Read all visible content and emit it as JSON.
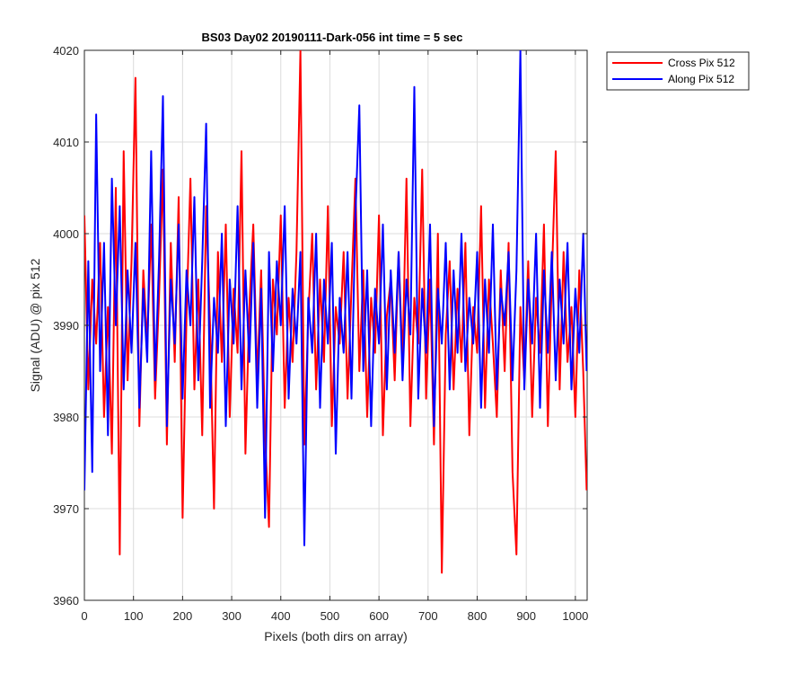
{
  "chart_data": {
    "type": "line",
    "title": "BS03 Day02 20190111-Dark-056 int time = 5 sec",
    "xlabel": "Pixels (both dirs on array)",
    "ylabel": "Signal (ADU) @ pix 512",
    "xlim": [
      0,
      1024
    ],
    "ylim": [
      3960,
      4020
    ],
    "xticks": [
      0,
      100,
      200,
      300,
      400,
      500,
      600,
      700,
      800,
      900,
      1000
    ],
    "yticks": [
      3960,
      3970,
      3980,
      3990,
      4000,
      4010,
      4020
    ],
    "grid": true,
    "legend_position": "outside-top-right",
    "series": [
      {
        "name": "Cross Pix 512",
        "color": "#ff0000",
        "x": [
          0,
          8,
          16,
          24,
          32,
          40,
          48,
          56,
          64,
          72,
          80,
          88,
          96,
          104,
          112,
          120,
          128,
          136,
          144,
          152,
          160,
          168,
          176,
          184,
          192,
          200,
          208,
          216,
          224,
          232,
          240,
          248,
          256,
          264,
          272,
          280,
          288,
          296,
          304,
          312,
          320,
          328,
          336,
          344,
          352,
          360,
          368,
          376,
          384,
          392,
          400,
          408,
          416,
          424,
          432,
          440,
          448,
          456,
          464,
          472,
          480,
          488,
          496,
          504,
          512,
          520,
          528,
          536,
          544,
          552,
          560,
          568,
          576,
          584,
          592,
          600,
          608,
          616,
          624,
          632,
          640,
          648,
          656,
          664,
          672,
          680,
          688,
          696,
          704,
          712,
          720,
          728,
          736,
          744,
          752,
          760,
          768,
          776,
          784,
          792,
          800,
          808,
          816,
          824,
          832,
          840,
          848,
          856,
          864,
          872,
          880,
          888,
          896,
          904,
          912,
          920,
          928,
          936,
          944,
          952,
          960,
          968,
          976,
          984,
          992,
          1000,
          1008,
          1016,
          1023
        ],
        "values": [
          4002,
          3983,
          3995,
          3988,
          3999,
          3980,
          3992,
          3976,
          4005,
          3965,
          4009,
          3984,
          3997,
          4017,
          3979,
          3996,
          3988,
          4001,
          3982,
          3993,
          4007,
          3977,
          3999,
          3986,
          4004,
          3969,
          3991,
          4006,
          3983,
          3995,
          3978,
          4003,
          3990,
          3970,
          3998,
          3986,
          4001,
          3980,
          3994,
          3987,
          4009,
          3976,
          3992,
          4001,
          3984,
          3996,
          3978,
          3968,
          3995,
          3989,
          4002,
          3981,
          3993,
          3986,
          3998,
          4020,
          3977,
          3991,
          4000,
          3983,
          3995,
          3986,
          4003,
          3979,
          3992,
          3988,
          3998,
          3982,
          3994,
          4006,
          3985,
          3996,
          3980,
          3993,
          3987,
          4002,
          3978,
          3991,
          3995,
          3984,
          3998,
          3986,
          4006,
          3979,
          3993,
          3988,
          4007,
          3982,
          3995,
          3977,
          4000,
          3963,
          3989,
          3997,
          3983,
          3994,
          3986,
          3999,
          3978,
          3992,
          3987,
          4003,
          3981,
          3995,
          3988,
          3980,
          3996,
          3985,
          3999,
          3974,
          3965,
          3992,
          3984,
          3997,
          3980,
          3993,
          3987,
          4001,
          3979,
          3995,
          4009,
          3983,
          3998,
          3986,
          3992,
          3980,
          3996,
          3985,
          3972
        ]
      },
      {
        "name": "Along Pix 512",
        "color": "#0000ff",
        "x": [
          0,
          8,
          16,
          24,
          32,
          40,
          48,
          56,
          64,
          72,
          80,
          88,
          96,
          104,
          112,
          120,
          128,
          136,
          144,
          152,
          160,
          168,
          176,
          184,
          192,
          200,
          208,
          216,
          224,
          232,
          240,
          248,
          256,
          264,
          272,
          280,
          288,
          296,
          304,
          312,
          320,
          328,
          336,
          344,
          352,
          360,
          368,
          376,
          384,
          392,
          400,
          408,
          416,
          424,
          432,
          440,
          448,
          456,
          464,
          472,
          480,
          488,
          496,
          504,
          512,
          520,
          528,
          536,
          544,
          552,
          560,
          568,
          576,
          584,
          592,
          600,
          608,
          616,
          624,
          632,
          640,
          648,
          656,
          664,
          672,
          680,
          688,
          696,
          704,
          712,
          720,
          728,
          736,
          744,
          752,
          760,
          768,
          776,
          784,
          792,
          800,
          808,
          816,
          824,
          832,
          840,
          848,
          856,
          864,
          872,
          880,
          888,
          896,
          904,
          912,
          920,
          928,
          936,
          944,
          952,
          960,
          968,
          976,
          984,
          992,
          1000,
          1008,
          1016,
          1023
        ],
        "values": [
          3972,
          3997,
          3974,
          4013,
          3985,
          3999,
          3978,
          4006,
          3990,
          4003,
          3983,
          3996,
          3987,
          3999,
          3981,
          3994,
          3986,
          4009,
          3984,
          3997,
          4015,
          3979,
          3995,
          3988,
          4001,
          3982,
          3996,
          3990,
          4004,
          3984,
          3997,
          4012,
          3981,
          3993,
          3987,
          4000,
          3979,
          3995,
          3988,
          4003,
          3983,
          3996,
          3986,
          3999,
          3981,
          3994,
          3969,
          3998,
          3985,
          3997,
          3990,
          4003,
          3982,
          3994,
          3988,
          3998,
          3966,
          3993,
          3987,
          4000,
          3981,
          3995,
          3988,
          3999,
          3976,
          3993,
          3987,
          3998,
          3982,
          4002,
          4014,
          3985,
          3996,
          3979,
          3994,
          3988,
          4001,
          3983,
          3996,
          3987,
          3998,
          3984,
          3995,
          3989,
          4016,
          3982,
          3994,
          3987,
          4001,
          3979,
          3994,
          3988,
          3999,
          3983,
          3996,
          3987,
          4000,
          3985,
          3993,
          3988,
          3998,
          3981,
          3995,
          3987,
          4001,
          3983,
          3994,
          3990,
          3998,
          3984,
          3996,
          4020,
          3983,
          3995,
          3988,
          4000,
          3981,
          3996,
          3987,
          3998,
          3984,
          3995,
          3988,
          3999,
          3983,
          3994,
          3987,
          4000,
          3985
        ]
      }
    ]
  }
}
